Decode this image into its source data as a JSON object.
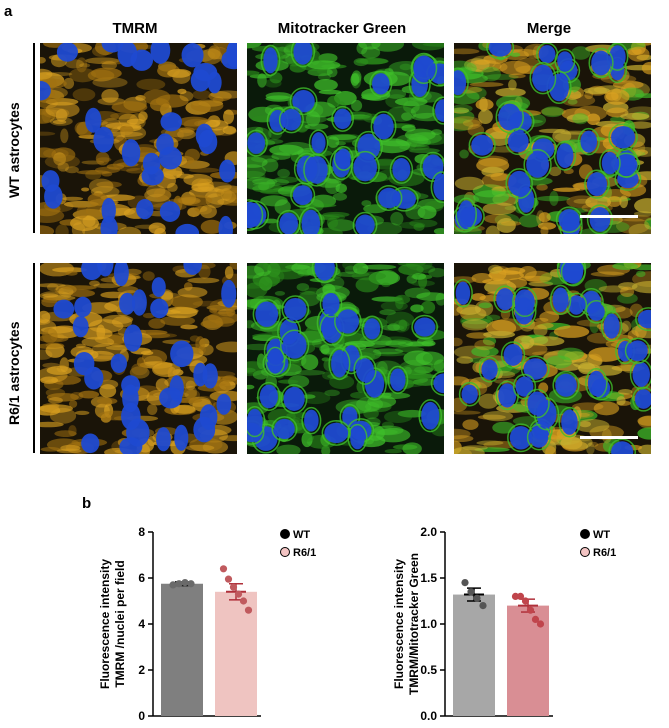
{
  "figure": {
    "panel_a_label": "a",
    "panel_b_label": "b",
    "columns": [
      "TMRM",
      "Mitotracker Green",
      "Merge"
    ],
    "rows": [
      "WT astrocytes",
      "R6/1  astrocytes"
    ],
    "channel_colors": {
      "tmrm": "#d9a020",
      "mitotracker": "#3fbf2a",
      "nuclei": "#1f4ad1",
      "background": "#1a1408"
    }
  },
  "chart_data": [
    {
      "type": "bar",
      "ylabel": "Fluorescence intensity\nTMRM /nuclei per field",
      "categories": [
        "WT",
        "R6/1"
      ],
      "values": [
        5.75,
        5.4
      ],
      "errors": [
        0.08,
        0.35
      ],
      "points": [
        [
          5.7,
          5.75,
          5.8,
          5.75
        ],
        [
          6.4,
          5.95,
          5.6,
          5.3,
          5.0,
          4.6
        ]
      ],
      "ylim": [
        0,
        8
      ],
      "yticks": [
        "0",
        "2",
        "4",
        "6",
        "8"
      ],
      "bar_colors": [
        "#7f7f7f",
        "#efc4c1"
      ],
      "point_colors": [
        "#6a6a6a",
        "#c05a5e"
      ],
      "legend": [
        "WT",
        "R6/1"
      ],
      "legend_colors": [
        "#000000",
        "#f3c4c3"
      ]
    },
    {
      "type": "bar",
      "ylabel": "Fluorescence intensity\nTMRM/Mitotracker Green",
      "categories": [
        "WT",
        "R6/1"
      ],
      "values": [
        1.32,
        1.2
      ],
      "errors": [
        0.07,
        0.07
      ],
      "points": [
        [
          1.45,
          1.35,
          1.28,
          1.2
        ],
        [
          1.3,
          1.3,
          1.25,
          1.15,
          1.05,
          1.0
        ]
      ],
      "ylim": [
        0,
        2
      ],
      "yticks": [
        "0.0",
        "0.5",
        "1.0",
        "1.5",
        "2.0"
      ],
      "bar_colors": [
        "#a7a7a7",
        "#d98e94"
      ],
      "point_colors": [
        "#555555",
        "#c0454c"
      ],
      "legend": [
        "WT",
        "R6/1"
      ],
      "legend_colors": [
        "#000000",
        "#f3c4c3"
      ]
    }
  ]
}
